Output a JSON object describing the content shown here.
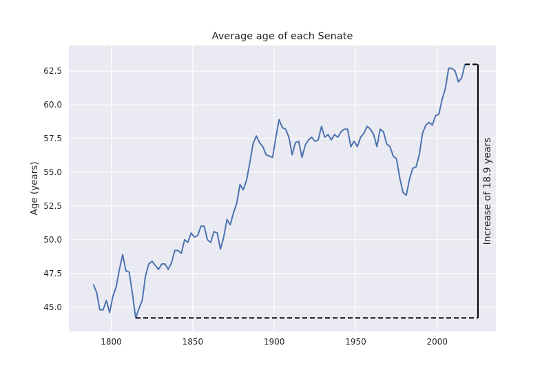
{
  "chart_data": {
    "type": "line",
    "title": "Average age of each Senate",
    "xlabel": "",
    "ylabel": "Age (years)",
    "xlim": [
      1774,
      2036
    ],
    "ylim": [
      43.2,
      64.4
    ],
    "x_ticks": [
      1800,
      1850,
      1900,
      1950,
      2000
    ],
    "y_ticks": [
      45.0,
      47.5,
      50.0,
      52.5,
      55.0,
      57.5,
      60.0,
      62.5
    ],
    "y_tick_labels": [
      "45.0",
      "47.5",
      "50.0",
      "52.5",
      "55.0",
      "57.5",
      "60.0",
      "62.5"
    ],
    "grid": true,
    "style": {
      "background": "#eaeaf2",
      "grid_color": "#ffffff",
      "line_color": "#4c72b0",
      "annotation_color": "#000000"
    },
    "series": [
      {
        "x": [
          1789,
          1791,
          1793,
          1795,
          1797,
          1799,
          1801,
          1803,
          1805,
          1807,
          1809,
          1811,
          1813,
          1815,
          1817,
          1819,
          1821,
          1823,
          1825,
          1827,
          1829,
          1831,
          1833,
          1835,
          1837,
          1839,
          1841,
          1843,
          1845,
          1847,
          1849,
          1851,
          1853,
          1855,
          1857,
          1859,
          1861,
          1863,
          1865,
          1867,
          1869,
          1871,
          1873,
          1875,
          1877,
          1879,
          1881,
          1883,
          1885,
          1887,
          1889,
          1891,
          1893,
          1895,
          1897,
          1899,
          1901,
          1903,
          1905,
          1907,
          1909,
          1911,
          1913,
          1915,
          1917,
          1919,
          1921,
          1923,
          1925,
          1927,
          1929,
          1931,
          1933,
          1935,
          1937,
          1939,
          1941,
          1943,
          1945,
          1947,
          1949,
          1951,
          1953,
          1955,
          1957,
          1959,
          1961,
          1963,
          1965,
          1967,
          1969,
          1971,
          1973,
          1975,
          1977,
          1979,
          1981,
          1983,
          1985,
          1987,
          1989,
          1991,
          1993,
          1995,
          1997,
          1999,
          2001,
          2003,
          2005,
          2007,
          2009,
          2011,
          2013,
          2015,
          2017
        ],
        "y": [
          46.7,
          46.1,
          44.8,
          44.8,
          45.5,
          44.6,
          45.8,
          46.5,
          47.8,
          48.9,
          47.7,
          47.6,
          46.0,
          44.2,
          44.9,
          45.5,
          47.3,
          48.2,
          48.4,
          48.1,
          47.8,
          48.2,
          48.2,
          47.8,
          48.3,
          49.2,
          49.2,
          49.0,
          50.0,
          49.8,
          50.5,
          50.2,
          50.3,
          51.0,
          51.0,
          50.0,
          49.8,
          50.6,
          50.5,
          49.3,
          50.2,
          51.5,
          51.1,
          52.0,
          52.7,
          54.1,
          53.7,
          54.4,
          55.7,
          57.1,
          57.7,
          57.2,
          56.9,
          56.3,
          56.2,
          56.1,
          57.6,
          58.9,
          58.3,
          58.2,
          57.6,
          56.3,
          57.2,
          57.3,
          56.1,
          57.0,
          57.4,
          57.6,
          57.3,
          57.4,
          58.4,
          57.6,
          57.8,
          57.4,
          57.8,
          57.6,
          58.0,
          58.2,
          58.2,
          56.9,
          57.3,
          56.9,
          57.6,
          57.9,
          58.4,
          58.2,
          57.8,
          56.9,
          58.2,
          58.0,
          57.1,
          56.9,
          56.2,
          56.0,
          54.6,
          53.5,
          53.3,
          54.5,
          55.3,
          55.4,
          56.3,
          57.9,
          58.5,
          58.7,
          58.5,
          59.2,
          59.3,
          60.4,
          61.2,
          62.7,
          62.7,
          62.5,
          61.7,
          62.0,
          63.0
        ]
      }
    ],
    "annotation": {
      "type": "bracket",
      "x_start": 1815,
      "x_end": 2017,
      "x_bracket": 2025,
      "y_low": 44.2,
      "y_high": 63.0,
      "text": "Increase of 18.9 years"
    }
  }
}
